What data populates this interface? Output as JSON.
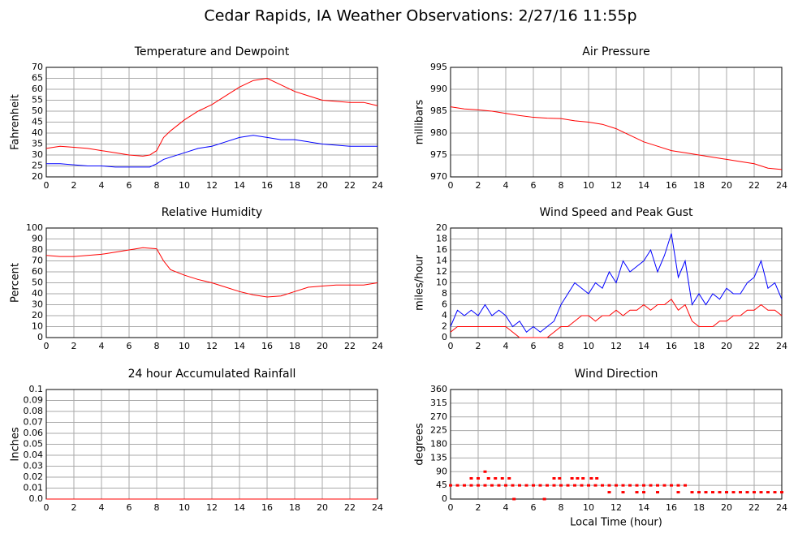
{
  "title": "Cedar Rapids, IA Weather Observations: 2/27/16 11:55p",
  "chart_data": [
    {
      "type": "line",
      "title": "Temperature and Dewpoint",
      "ylabel": "Fahrenheit",
      "grid": true,
      "xlim": [
        0,
        24
      ],
      "xticks": [
        0,
        2,
        4,
        6,
        8,
        10,
        12,
        14,
        16,
        18,
        20,
        22,
        24
      ],
      "ylim": [
        20,
        70
      ],
      "yticks": [
        20,
        25,
        30,
        35,
        40,
        45,
        50,
        55,
        60,
        65,
        70
      ],
      "x": [
        0,
        1,
        2,
        3,
        4,
        5,
        6,
        7,
        7.5,
        8,
        8.5,
        9,
        10,
        11,
        12,
        13,
        14,
        15,
        16,
        17,
        18,
        19,
        20,
        21,
        22,
        23,
        24
      ],
      "series": [
        {
          "color": "#ff0000",
          "values": [
            33,
            34,
            33.5,
            33,
            32,
            31,
            30,
            29.5,
            30,
            32,
            38,
            41,
            46,
            50,
            53,
            57,
            61,
            64,
            65,
            62,
            59,
            57,
            55,
            54.5,
            54,
            54,
            52.5
          ]
        },
        {
          "color": "#0000ff",
          "values": [
            26,
            26,
            25.5,
            25,
            25,
            24.5,
            24.5,
            24.5,
            24.5,
            26,
            28,
            29,
            31,
            33,
            34,
            36,
            38,
            39,
            38,
            37,
            37,
            36,
            35,
            34.5,
            34,
            34,
            34
          ]
        }
      ]
    },
    {
      "type": "line",
      "title": "Air Pressure",
      "ylabel": "millibars",
      "grid": true,
      "xlim": [
        0,
        24
      ],
      "xticks": [
        0,
        2,
        4,
        6,
        8,
        10,
        12,
        14,
        16,
        18,
        20,
        22,
        24
      ],
      "ylim": [
        970,
        995
      ],
      "yticks": [
        970,
        975,
        980,
        985,
        990,
        995
      ],
      "x": [
        0,
        1,
        2,
        3,
        4,
        5,
        6,
        7,
        8,
        9,
        10,
        11,
        12,
        13,
        14,
        15,
        16,
        17,
        18,
        19,
        20,
        21,
        22,
        23,
        24
      ],
      "series": [
        {
          "color": "#ff0000",
          "values": [
            986,
            985.5,
            985.3,
            985,
            984.5,
            984,
            983.6,
            983.4,
            983.3,
            982.8,
            982.5,
            982,
            981,
            979.5,
            978,
            977,
            976,
            975.5,
            975,
            974.5,
            974,
            973.5,
            973,
            972,
            971.7
          ]
        }
      ]
    },
    {
      "type": "line",
      "title": "Relative Humidity",
      "ylabel": "Percent",
      "grid": true,
      "xlim": [
        0,
        24
      ],
      "xticks": [
        0,
        2,
        4,
        6,
        8,
        10,
        12,
        14,
        16,
        18,
        20,
        22,
        24
      ],
      "ylim": [
        0,
        100
      ],
      "yticks": [
        0,
        10,
        20,
        30,
        40,
        50,
        60,
        70,
        80,
        90,
        100
      ],
      "x": [
        0,
        1,
        2,
        3,
        4,
        5,
        6,
        7,
        8,
        8.5,
        9,
        10,
        11,
        12,
        13,
        14,
        15,
        16,
        17,
        18,
        19,
        20,
        21,
        22,
        23,
        24
      ],
      "series": [
        {
          "color": "#ff0000",
          "values": [
            75,
            74,
            74,
            75,
            76,
            78,
            80,
            82,
            81,
            70,
            62,
            57,
            53,
            50,
            46,
            42,
            39,
            37,
            38,
            42,
            46,
            47,
            48,
            48,
            48,
            50
          ]
        }
      ]
    },
    {
      "type": "line",
      "title": "Wind Speed and Peak Gust",
      "ylabel": "miles/hour",
      "grid": true,
      "xlim": [
        0,
        24
      ],
      "xticks": [
        0,
        2,
        4,
        6,
        8,
        10,
        12,
        14,
        16,
        18,
        20,
        22,
        24
      ],
      "ylim": [
        0,
        20
      ],
      "yticks": [
        0,
        2,
        4,
        6,
        8,
        10,
        12,
        14,
        16,
        18,
        20
      ],
      "x": [
        0,
        0.5,
        1,
        1.5,
        2,
        2.5,
        3,
        3.5,
        4,
        4.5,
        5,
        5.5,
        6,
        6.5,
        7,
        7.5,
        8,
        8.5,
        9,
        9.5,
        10,
        10.5,
        11,
        11.5,
        12,
        12.5,
        13,
        13.5,
        14,
        14.5,
        15,
        15.5,
        16,
        16.5,
        17,
        17.5,
        18,
        18.5,
        19,
        19.5,
        20,
        20.5,
        21,
        21.5,
        22,
        22.5,
        23,
        23.5,
        24
      ],
      "series": [
        {
          "color": "#0000ff",
          "values": [
            2,
            5,
            4,
            5,
            4,
            6,
            4,
            5,
            4,
            2,
            3,
            1,
            2,
            1,
            2,
            3,
            6,
            8,
            10,
            9,
            8,
            10,
            9,
            12,
            10,
            14,
            12,
            13,
            14,
            16,
            12,
            15,
            19,
            11,
            14,
            6,
            8,
            6,
            8,
            7,
            9,
            8,
            8,
            10,
            11,
            14,
            9,
            10,
            7
          ]
        },
        {
          "color": "#ff0000",
          "values": [
            1,
            2,
            2,
            2,
            2,
            2,
            2,
            2,
            2,
            1,
            0,
            0,
            0,
            0,
            0,
            1,
            2,
            2,
            3,
            4,
            4,
            3,
            4,
            4,
            5,
            4,
            5,
            5,
            6,
            5,
            6,
            6,
            7,
            5,
            6,
            3,
            2,
            2,
            2,
            3,
            3,
            4,
            4,
            5,
            5,
            6,
            5,
            5,
            4
          ]
        }
      ]
    },
    {
      "type": "line",
      "title": "24 hour Accumulated Rainfall",
      "ylabel": "Inches",
      "grid": true,
      "xlim": [
        0,
        24
      ],
      "xticks": [
        0,
        2,
        4,
        6,
        8,
        10,
        12,
        14,
        16,
        18,
        20,
        22,
        24
      ],
      "ylim": [
        0,
        0.1
      ],
      "yticks": [
        {
          "value": 0,
          "label": "0.0"
        },
        0.01,
        0.02,
        0.03,
        0.04,
        0.05,
        0.06,
        0.07,
        0.08,
        0.09,
        0.1
      ],
      "x": [
        0,
        24
      ],
      "series": [
        {
          "color": "#ff0000",
          "values": [
            0,
            0
          ]
        }
      ]
    },
    {
      "type": "scatter",
      "title": "Wind Direction",
      "ylabel": "degrees",
      "xlabel": "Local Time (hour)",
      "grid": true,
      "xlim": [
        0,
        24
      ],
      "xticks": [
        0,
        2,
        4,
        6,
        8,
        10,
        12,
        14,
        16,
        18,
        20,
        22,
        24
      ],
      "ylim": [
        0,
        360
      ],
      "yticks": [
        0,
        45,
        90,
        135,
        180,
        225,
        270,
        315,
        360
      ],
      "x": [
        0,
        0.5,
        1,
        1.5,
        2,
        2.5,
        3,
        3.5,
        4,
        4.5,
        5,
        5.5,
        6,
        6.5,
        7,
        7.5,
        8,
        8.5,
        9,
        9.5,
        10,
        10.5,
        11,
        11.5,
        12,
        12.5,
        13,
        13.5,
        14,
        14.5,
        15,
        15.5,
        16,
        16.5,
        17,
        17.5,
        18,
        18.5,
        19,
        19.5,
        20,
        20.5,
        21,
        21.5,
        22,
        22.5,
        23,
        23.5,
        24,
        11.5,
        12.5,
        13.5,
        14,
        15,
        16.5,
        1.5,
        2,
        2.75,
        3.25,
        3.75,
        4.25,
        7.5,
        7.9,
        8.8,
        9.2,
        9.6,
        10.2,
        10.6,
        2.5,
        4.6,
        6.8
      ],
      "series": [
        {
          "color": "#ff0000",
          "values": [
            45,
            45,
            45,
            45,
            45,
            45,
            45,
            45,
            45,
            45,
            45,
            45,
            45,
            45,
            45,
            45,
            45,
            45,
            45,
            45,
            45,
            45,
            45,
            45,
            45,
            45,
            45,
            45,
            45,
            45,
            45,
            45,
            45,
            45,
            45,
            22.5,
            22.5,
            22.5,
            22.5,
            22.5,
            22.5,
            22.5,
            22.5,
            22.5,
            22.5,
            22.5,
            22.5,
            22.5,
            22.5,
            22.5,
            22.5,
            22.5,
            22.5,
            22.5,
            22.5,
            68,
            68,
            68,
            68,
            68,
            68,
            68,
            68,
            68,
            68,
            68,
            68,
            68,
            90,
            0,
            0
          ]
        }
      ]
    }
  ]
}
